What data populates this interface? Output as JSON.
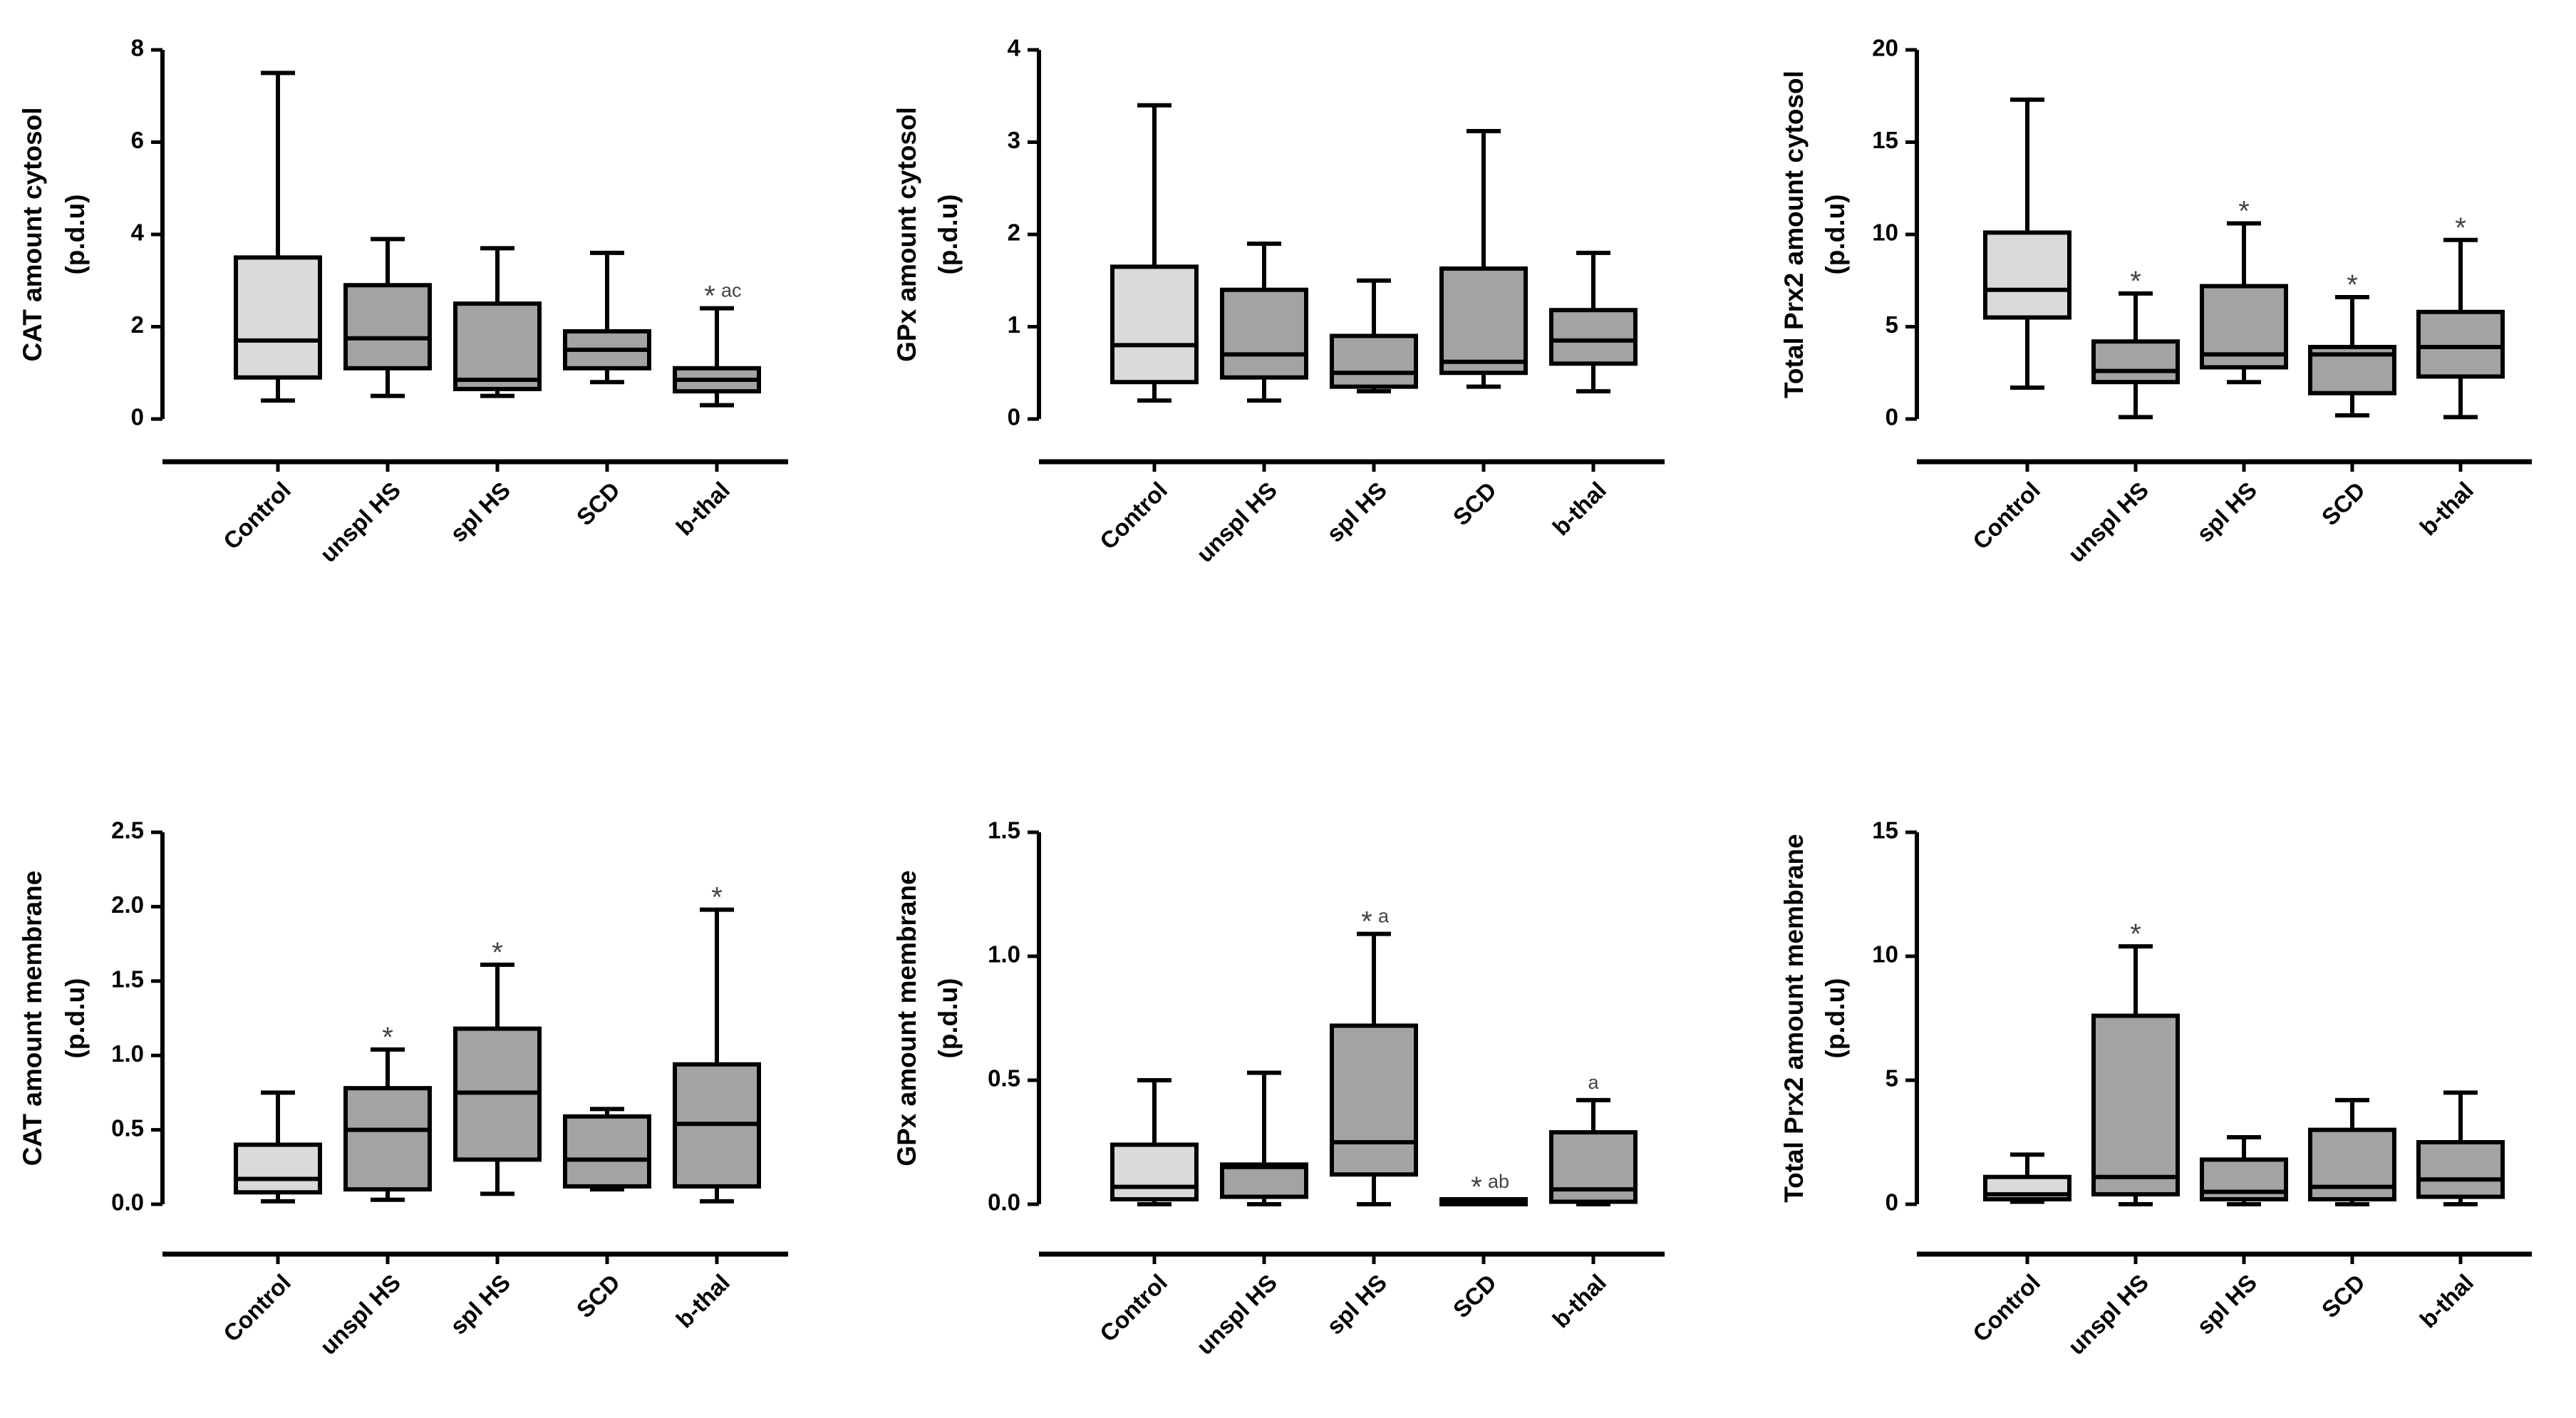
{
  "figure_colors": {
    "control_fill": "#dadada",
    "group_fill": "#a3a3a3",
    "stroke": "#000000",
    "annotation": "#444444"
  },
  "chart_data": [
    {
      "type": "boxplot",
      "ylabel": "CAT amount cytosol",
      "ylabel_unit": "(p.d.u)",
      "ylim": [
        0,
        8
      ],
      "yticks": [
        "0",
        "2",
        "4",
        "6",
        "8"
      ],
      "categories": [
        "Control",
        "unspl HS",
        "spl HS",
        "SCD",
        "b-thal"
      ],
      "boxes": [
        {
          "min": 0.4,
          "q1": 0.9,
          "median": 1.7,
          "q3": 3.5,
          "max": 7.5,
          "annot": ""
        },
        {
          "min": 0.5,
          "q1": 1.1,
          "median": 1.75,
          "q3": 2.9,
          "max": 3.9,
          "annot": ""
        },
        {
          "min": 0.5,
          "q1": 0.65,
          "median": 0.85,
          "q3": 2.5,
          "max": 3.7,
          "annot": ""
        },
        {
          "min": 0.8,
          "q1": 1.1,
          "median": 1.5,
          "q3": 1.9,
          "max": 3.6,
          "annot": ""
        },
        {
          "min": 0.3,
          "q1": 0.6,
          "median": 0.85,
          "q3": 1.1,
          "max": 2.4,
          "annot": "*",
          "annot_sup": "ac"
        }
      ]
    },
    {
      "type": "boxplot",
      "ylabel": "GPx amount cytosol",
      "ylabel_unit": "(p.d.u)",
      "ylim": [
        0,
        4
      ],
      "yticks": [
        "0",
        "1",
        "2",
        "3",
        "4"
      ],
      "categories": [
        "Control",
        "unspl HS",
        "spl HS",
        "SCD",
        "b-thal"
      ],
      "boxes": [
        {
          "min": 0.2,
          "q1": 0.4,
          "median": 0.8,
          "q3": 1.65,
          "max": 3.4,
          "annot": ""
        },
        {
          "min": 0.2,
          "q1": 0.45,
          "median": 0.7,
          "q3": 1.4,
          "max": 1.9,
          "annot": ""
        },
        {
          "min": 0.3,
          "q1": 0.35,
          "median": 0.5,
          "q3": 0.9,
          "max": 1.5,
          "annot": ""
        },
        {
          "min": 0.35,
          "q1": 0.5,
          "median": 0.62,
          "q3": 1.63,
          "max": 3.12,
          "annot": ""
        },
        {
          "min": 0.3,
          "q1": 0.6,
          "median": 0.85,
          "q3": 1.18,
          "max": 1.8,
          "annot": ""
        }
      ]
    },
    {
      "type": "boxplot",
      "ylabel": "Total Prx2 amount cytosol",
      "ylabel_unit": "(p.d.u)",
      "ylim": [
        0,
        20
      ],
      "yticks": [
        "0",
        "5",
        "10",
        "15",
        "20"
      ],
      "categories": [
        "Control",
        "unspl HS",
        "spl HS",
        "SCD",
        "b-thal"
      ],
      "boxes": [
        {
          "min": 1.7,
          "q1": 5.5,
          "median": 7.0,
          "q3": 10.1,
          "max": 17.3,
          "annot": ""
        },
        {
          "min": 0.1,
          "q1": 2.0,
          "median": 2.6,
          "q3": 4.2,
          "max": 6.8,
          "annot": "*"
        },
        {
          "min": 2.0,
          "q1": 2.8,
          "median": 3.5,
          "q3": 7.2,
          "max": 10.6,
          "annot": "*"
        },
        {
          "min": 0.2,
          "q1": 1.4,
          "median": 3.5,
          "q3": 3.9,
          "max": 6.6,
          "annot": "*"
        },
        {
          "min": 0.1,
          "q1": 2.3,
          "median": 3.9,
          "q3": 5.8,
          "max": 9.7,
          "annot": "*"
        }
      ]
    },
    {
      "type": "boxplot",
      "ylabel": "CAT amount membrane",
      "ylabel_unit": "(p.d.u)",
      "ylim": [
        0,
        2.5
      ],
      "yticks": [
        "0.0",
        "0.5",
        "1.0",
        "1.5",
        "2.0",
        "2.5"
      ],
      "categories": [
        "Control",
        "unspl HS",
        "spl HS",
        "SCD",
        "b-thal"
      ],
      "boxes": [
        {
          "min": 0.02,
          "q1": 0.08,
          "median": 0.17,
          "q3": 0.4,
          "max": 0.75,
          "annot": ""
        },
        {
          "min": 0.03,
          "q1": 0.1,
          "median": 0.5,
          "q3": 0.78,
          "max": 1.04,
          "annot": "*"
        },
        {
          "min": 0.07,
          "q1": 0.3,
          "median": 0.75,
          "q3": 1.18,
          "max": 1.61,
          "annot": "*"
        },
        {
          "min": 0.1,
          "q1": 0.12,
          "median": 0.3,
          "q3": 0.59,
          "max": 0.64,
          "annot": ""
        },
        {
          "min": 0.02,
          "q1": 0.12,
          "median": 0.54,
          "q3": 0.94,
          "max": 1.98,
          "annot": "*"
        }
      ]
    },
    {
      "type": "boxplot",
      "ylabel": "GPx amount membrane",
      "ylabel_unit": "(p.d.u)",
      "ylim": [
        0,
        1.5
      ],
      "yticks": [
        "0.0",
        "0.5",
        "1.0",
        "1.5"
      ],
      "categories": [
        "Control",
        "unspl HS",
        "spl HS",
        "SCD",
        "b-thal"
      ],
      "boxes": [
        {
          "min": 0.0,
          "q1": 0.02,
          "median": 0.07,
          "q3": 0.24,
          "max": 0.5,
          "annot": ""
        },
        {
          "min": 0.0,
          "q1": 0.03,
          "median": 0.15,
          "q3": 0.16,
          "max": 0.53,
          "annot": ""
        },
        {
          "min": 0.0,
          "q1": 0.12,
          "median": 0.25,
          "q3": 0.72,
          "max": 1.09,
          "annot": "*",
          "annot_sup": "a"
        },
        {
          "min": 0.0,
          "q1": 0.0,
          "median": 0.01,
          "q3": 0.02,
          "max": 0.02,
          "annot": "*",
          "annot_sup": "ab"
        },
        {
          "min": 0.0,
          "q1": 0.01,
          "median": 0.06,
          "q3": 0.29,
          "max": 0.42,
          "annot": "",
          "annot_sup": "a"
        }
      ]
    },
    {
      "type": "boxplot",
      "ylabel": "Total Prx2 amount membrane",
      "ylabel_unit": "(p.d.u)",
      "ylim": [
        0,
        15
      ],
      "yticks": [
        "0",
        "5",
        "10",
        "15"
      ],
      "categories": [
        "Control",
        "unspl HS",
        "spl HS",
        "SCD",
        "b-thal"
      ],
      "boxes": [
        {
          "min": 0.1,
          "q1": 0.2,
          "median": 0.4,
          "q3": 1.1,
          "max": 2.0,
          "annot": ""
        },
        {
          "min": 0.0,
          "q1": 0.4,
          "median": 1.1,
          "q3": 7.6,
          "max": 10.4,
          "annot": "*"
        },
        {
          "min": 0.0,
          "q1": 0.2,
          "median": 0.5,
          "q3": 1.8,
          "max": 2.7,
          "annot": ""
        },
        {
          "min": 0.0,
          "q1": 0.2,
          "median": 0.7,
          "q3": 3.0,
          "max": 4.2,
          "annot": ""
        },
        {
          "min": 0.0,
          "q1": 0.3,
          "median": 1.0,
          "q3": 2.5,
          "max": 4.5,
          "annot": ""
        }
      ]
    }
  ]
}
